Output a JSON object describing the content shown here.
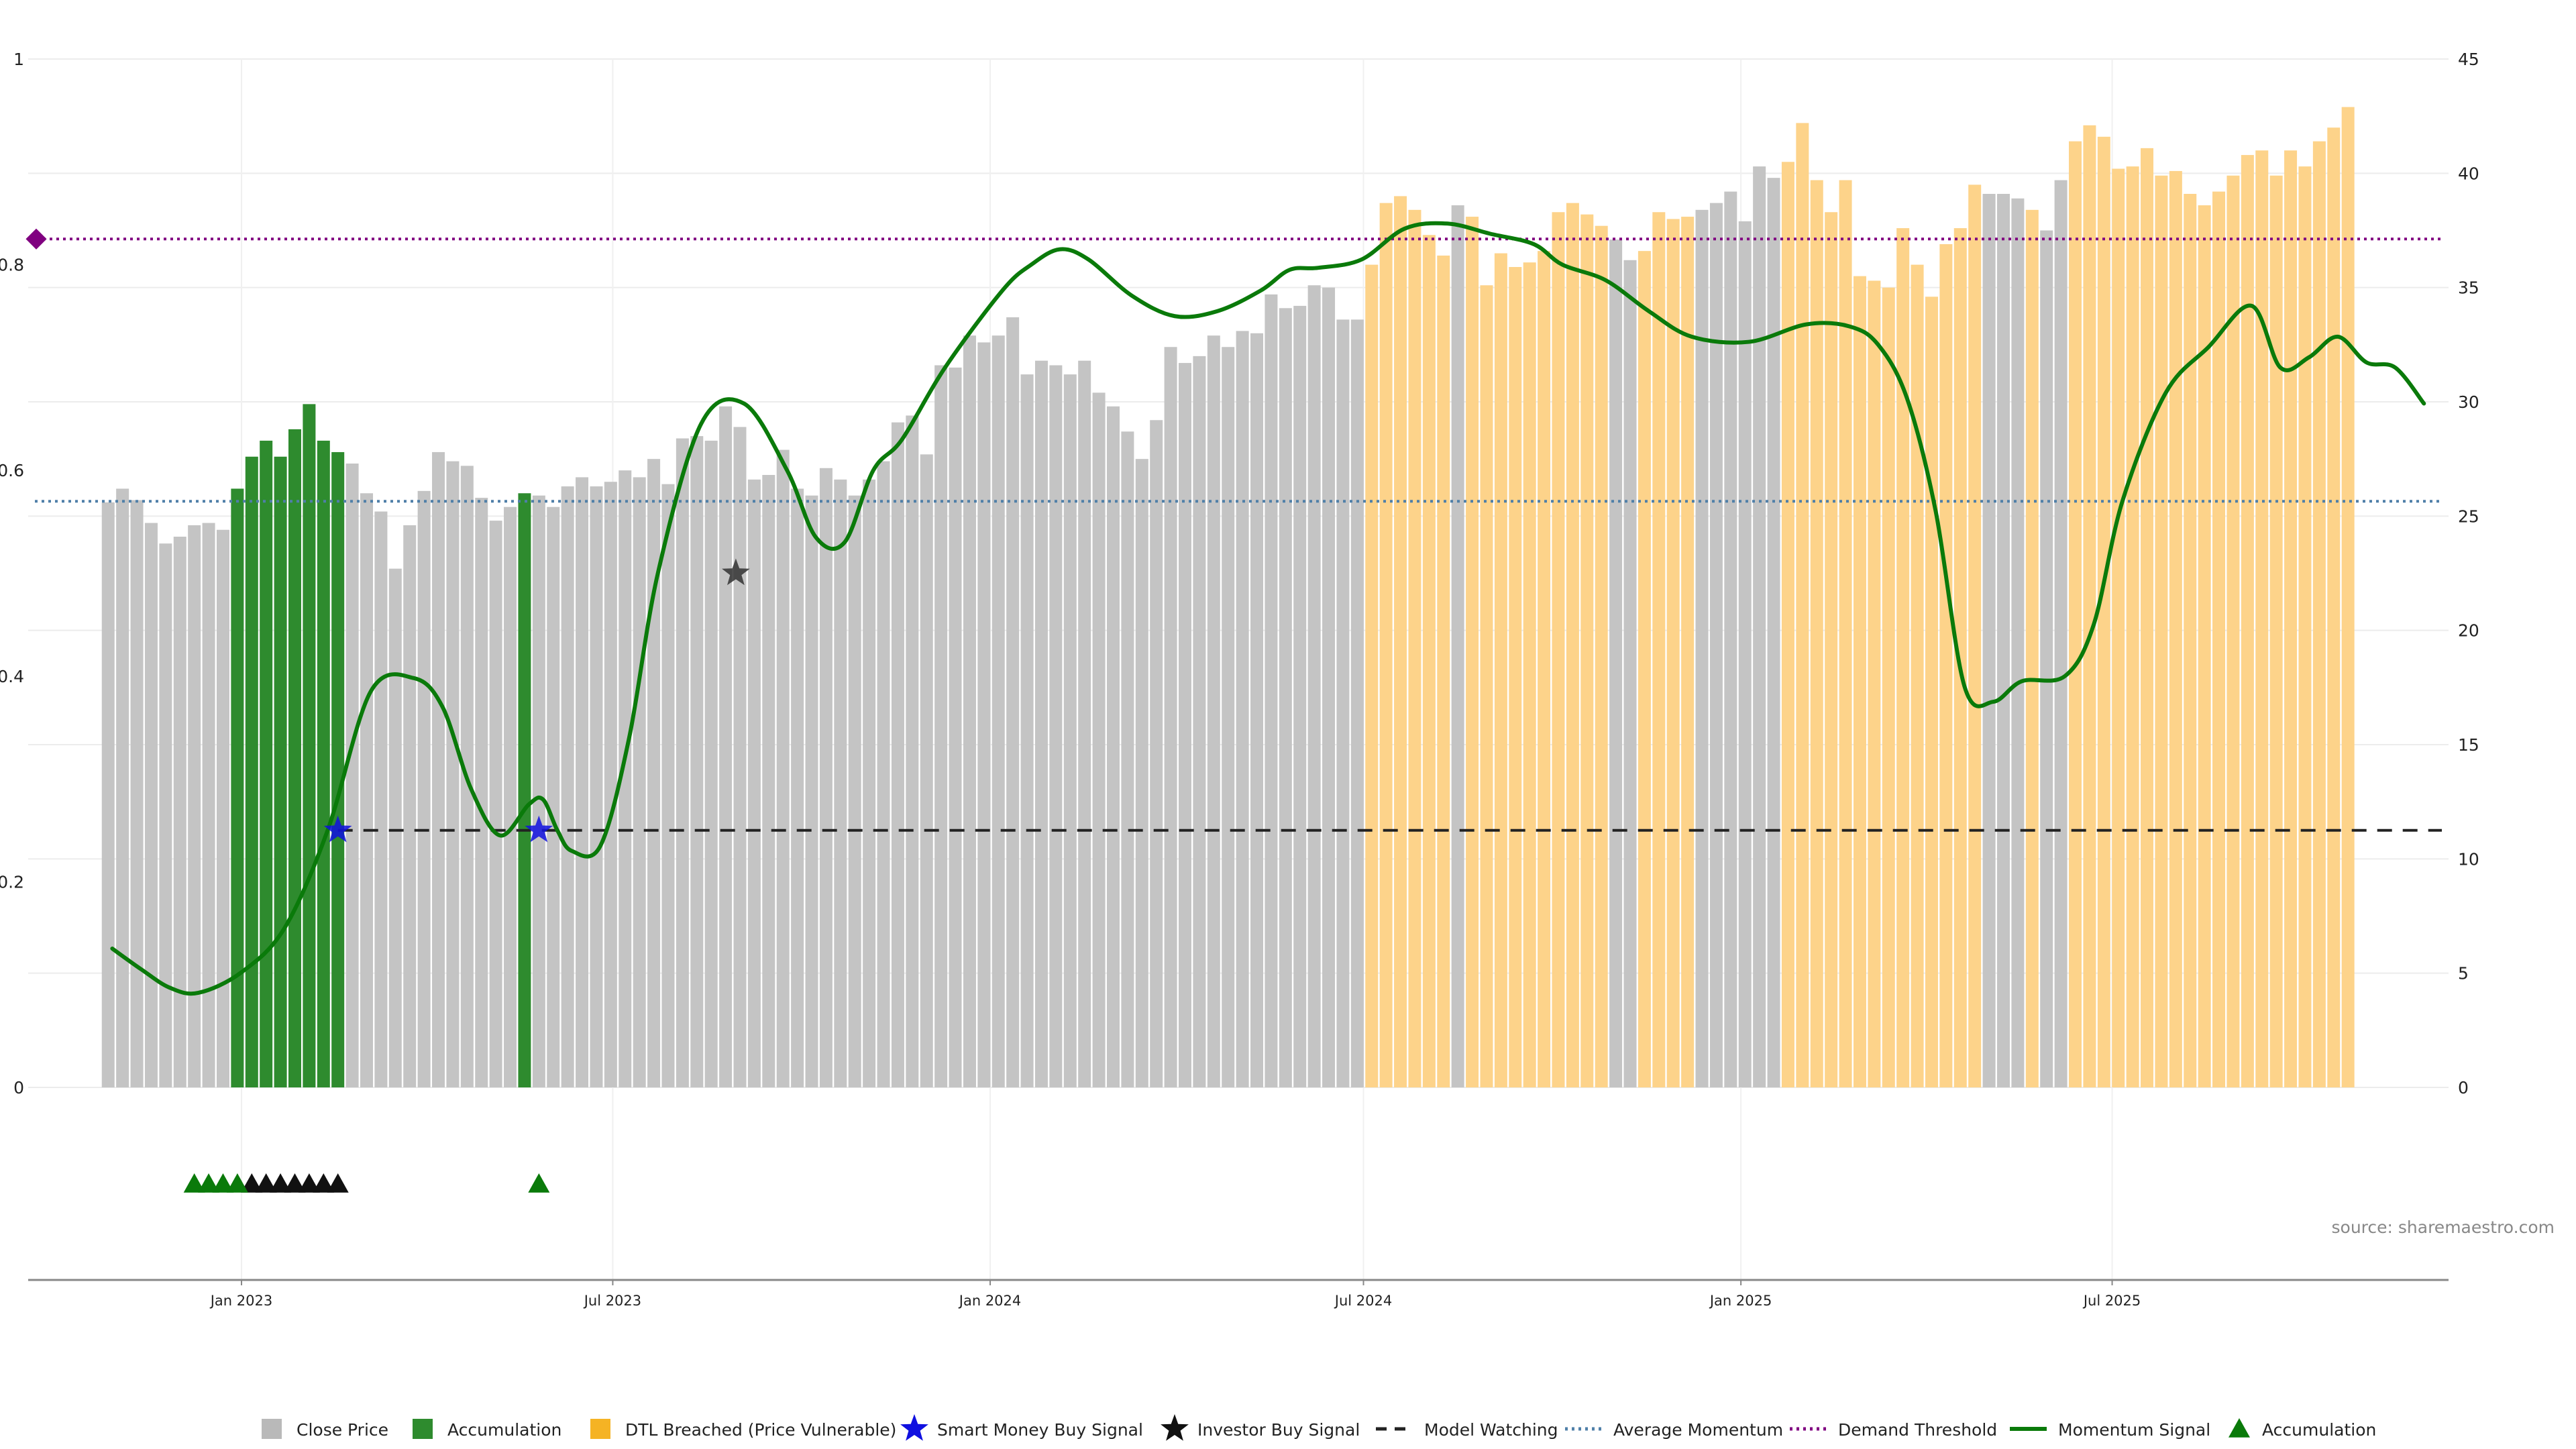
{
  "chart_data": {
    "type": "bar",
    "title": "",
    "xlabel": "",
    "ylabel": "",
    "source": "source: sharemaestro.com",
    "x_ticks": [
      "Jan 2023",
      "Jul 2023",
      "Jan 2024",
      "Jul 2024",
      "Jan 2025",
      "Jul 2025"
    ],
    "left_axis": {
      "ticks": [
        "0",
        "0.2",
        "0.4",
        "0.6",
        "0.8",
        "1"
      ],
      "ylim": [
        0,
        1
      ]
    },
    "right_axis": {
      "ticks": [
        "0",
        "5",
        "10",
        "15",
        "20",
        "25",
        "30",
        "35",
        "40",
        "45"
      ],
      "ylim": [
        0,
        45
      ]
    },
    "grid": true,
    "legend_position": "bottom",
    "legend": [
      {
        "label": "Close Price",
        "marker": "square",
        "color": "#b9b9b9"
      },
      {
        "label": "Accumulation",
        "marker": "square",
        "color": "#2e8b2e"
      },
      {
        "label": "DTL Breached (Price Vulnerable)",
        "marker": "square",
        "color": "#f5b324"
      },
      {
        "label": "Smart Money Buy Signal",
        "marker": "star",
        "color": "#1010e0"
      },
      {
        "label": "Investor Buy Signal",
        "marker": "star",
        "color": "#111111"
      },
      {
        "label": "Model Watching",
        "marker": "dash",
        "color": "#222222"
      },
      {
        "label": "Average Momentum",
        "marker": "dot",
        "color": "#4f7fa8"
      },
      {
        "label": "Demand Threshold",
        "marker": "dot",
        "color": "#800080"
      },
      {
        "label": "Momentum Signal",
        "marker": "line",
        "color": "#0a7a0a"
      },
      {
        "label": "Accumulation",
        "marker": "triangle",
        "color": "#0a7a0a"
      }
    ],
    "colors": {
      "close": "#c4c4c4",
      "accumulation": "#2e8b2e",
      "dtl": "#fdd38a",
      "momentum": "#0a7a0a",
      "average_momentum": "#4f7fa8",
      "demand_threshold": "#800080",
      "model_watching": "#222222"
    },
    "bar_start_date": "2022-10-28",
    "bar_step_days": 7,
    "close_price": [
      25.6,
      26.2,
      25.7,
      24.7,
      23.8,
      24.1,
      24.6,
      24.7,
      24.4,
      26.2,
      27.6,
      28.3,
      27.6,
      28.8,
      29.9,
      28.3,
      27.8,
      27.3,
      26.0,
      25.2,
      22.7,
      24.6,
      26.1,
      27.8,
      27.4,
      27.2,
      25.8,
      24.8,
      25.4,
      26.0,
      25.9,
      25.4,
      26.3,
      26.7,
      26.3,
      26.5,
      27.0,
      26.7,
      27.5,
      26.4,
      28.4,
      28.5,
      28.3,
      29.8,
      28.9,
      26.6,
      26.8,
      27.9,
      26.2,
      25.9,
      27.1,
      26.6,
      25.9,
      26.6,
      27.4,
      29.1,
      29.4,
      27.7,
      31.6,
      31.5,
      32.9,
      32.6,
      32.9,
      33.7,
      31.2,
      31.8,
      31.6,
      31.2,
      31.8,
      30.4,
      29.8,
      28.7,
      27.5,
      29.2,
      32.4,
      31.7,
      32.0,
      32.9,
      32.4,
      33.1,
      33.0,
      34.7,
      34.1,
      34.2,
      35.1,
      35.0,
      33.6,
      33.6,
      36.0,
      38.7,
      39.0,
      38.4,
      37.3,
      36.4,
      38.6,
      38.1,
      35.1,
      36.5,
      35.9,
      36.1,
      36.6,
      38.3,
      38.7,
      38.2,
      37.7,
      37.1,
      36.2,
      36.6,
      38.3,
      38.0,
      38.1,
      38.4,
      38.7,
      39.2,
      37.9,
      40.3,
      39.8,
      40.5,
      42.2,
      39.7,
      38.3,
      39.7,
      35.5,
      35.3,
      35.0,
      37.6,
      36.0,
      34.6,
      36.9,
      37.6,
      39.5,
      39.1,
      39.1,
      38.9,
      38.4,
      37.5,
      39.7,
      41.4,
      42.1,
      41.6,
      40.2,
      40.3,
      41.1,
      39.9,
      40.1,
      39.1,
      38.6,
      39.2,
      39.9,
      40.8,
      41.0,
      39.9,
      41.0,
      40.3,
      41.4,
      42.0,
      42.9
    ],
    "accumulation_bars": [
      9,
      10,
      11,
      12,
      13,
      14,
      15,
      16,
      29
    ],
    "dtl_breached_ranges": [
      [
        88,
        93
      ],
      [
        95,
        100
      ],
      [
        101,
        104
      ],
      [
        107,
        110
      ],
      [
        117,
        130
      ],
      [
        134,
        134
      ],
      [
        137,
        157
      ]
    ],
    "momentum_signal": {
      "x": [
        "2022-10-30",
        "2022-11-13",
        "2022-11-27",
        "2022-12-11",
        "2023-01-01",
        "2023-01-22",
        "2023-02-12",
        "2023-03-05",
        "2023-03-26",
        "2023-04-09",
        "2023-04-23",
        "2023-05-07",
        "2023-05-21",
        "2023-05-28",
        "2023-06-04",
        "2023-06-11",
        "2023-06-25",
        "2023-07-09",
        "2023-07-23",
        "2023-08-13",
        "2023-09-03",
        "2023-09-24",
        "2023-10-08",
        "2023-10-22",
        "2023-11-05",
        "2023-11-19",
        "2023-12-10",
        "2024-01-07",
        "2024-01-21",
        "2024-02-04",
        "2024-02-18",
        "2024-03-10",
        "2024-03-31",
        "2024-04-21",
        "2024-05-12",
        "2024-05-26",
        "2024-06-09",
        "2024-06-30",
        "2024-07-21",
        "2024-08-11",
        "2024-09-01",
        "2024-09-22",
        "2024-10-06",
        "2024-10-27",
        "2024-11-17",
        "2024-12-08",
        "2025-01-05",
        "2025-02-02",
        "2025-02-23",
        "2025-03-09",
        "2025-03-23",
        "2025-04-06",
        "2025-04-20",
        "2025-05-04",
        "2025-05-18",
        "2025-06-08",
        "2025-06-22",
        "2025-07-06",
        "2025-07-27",
        "2025-08-17",
        "2025-09-07",
        "2025-09-21",
        "2025-10-05",
        "2025-10-19",
        "2025-11-02",
        "2025-11-16",
        "2025-11-30"
      ],
      "y": [
        0.135,
        0.115,
        0.097,
        0.092,
        0.112,
        0.155,
        0.25,
        0.385,
        0.398,
        0.37,
        0.29,
        0.245,
        0.275,
        0.28,
        0.25,
        0.23,
        0.235,
        0.34,
        0.5,
        0.645,
        0.665,
        0.6,
        0.535,
        0.53,
        0.6,
        0.63,
        0.7,
        0.775,
        0.8,
        0.815,
        0.805,
        0.77,
        0.75,
        0.755,
        0.775,
        0.795,
        0.797,
        0.805,
        0.835,
        0.84,
        0.83,
        0.82,
        0.8,
        0.785,
        0.755,
        0.73,
        0.725,
        0.742,
        0.74,
        0.722,
        0.67,
        0.56,
        0.39,
        0.375,
        0.395,
        0.4,
        0.45,
        0.57,
        0.675,
        0.72,
        0.76,
        0.7,
        0.71,
        0.73,
        0.705,
        0.7,
        0.665
      ]
    },
    "average_momentum": 0.57,
    "demand_threshold": 0.825,
    "model_watching": 0.25,
    "smart_money_buy_signals": [
      {
        "x": "2023-02-17",
        "y": 0.25
      },
      {
        "x": "2023-05-26",
        "y": 0.25
      }
    ],
    "investor_buy_signals": [
      {
        "x": "2023-08-30",
        "y": 0.5
      }
    ],
    "accumulation_markers": [
      "2022-12-09",
      "2022-12-16",
      "2022-12-23",
      "2022-12-30",
      "2023-05-26"
    ],
    "investor_markers": [
      "2023-01-06",
      "2023-01-13",
      "2023-01-20",
      "2023-01-27",
      "2023-02-03",
      "2023-02-10",
      "2023-02-17"
    ]
  }
}
